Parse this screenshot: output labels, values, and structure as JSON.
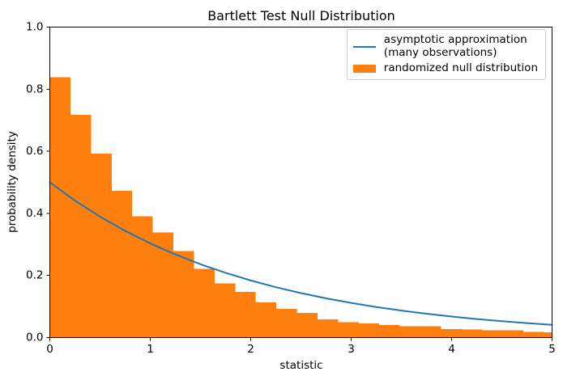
{
  "colors": {
    "line": "#1f77b4",
    "bars": "#ff7f0e",
    "axes": "#000000",
    "background": "#ffffff",
    "legend_border": "#cccccc"
  },
  "legend": {
    "position": "upper right",
    "items": [
      {
        "label_lines": [
          "asymptotic approximation",
          "(many observations)"
        ],
        "handle": "line"
      },
      {
        "label_lines": [
          "randomized null distribution"
        ],
        "handle": "patch"
      }
    ]
  },
  "chart_data": {
    "type": "histogram",
    "title": "Bartlett Test Null Distribution",
    "xlabel": "statistic",
    "ylabel": "probability density",
    "xlim": [
      0,
      5
    ],
    "ylim": [
      0,
      1
    ],
    "xticks": [
      0,
      1,
      2,
      3,
      4,
      5
    ],
    "xtick_labels": [
      "0",
      "1",
      "2",
      "3",
      "4",
      "5"
    ],
    "yticks": [
      0,
      0.2,
      0.4,
      0.6,
      0.8,
      1.0
    ],
    "ytick_labels": [
      "0.0",
      "0.2",
      "0.4",
      "0.6",
      "0.8",
      "1.0"
    ],
    "grid": false,
    "legend_position": "upper right",
    "series": [
      {
        "name": "asymptotic approximation (many observations)",
        "type": "line",
        "color": "#1f77b4",
        "x": [
          0,
          0.25,
          0.5,
          0.75,
          1.0,
          1.25,
          1.5,
          1.75,
          2.0,
          2.25,
          2.5,
          2.75,
          3.0,
          3.25,
          3.5,
          3.75,
          4.0,
          4.25,
          4.5,
          4.75,
          5.0
        ],
        "y": [
          0.5,
          0.4412,
          0.3894,
          0.3436,
          0.3033,
          0.2676,
          0.2362,
          0.2084,
          0.1839,
          0.1623,
          0.1433,
          0.1264,
          0.1116,
          0.0984,
          0.0869,
          0.0767,
          0.0677,
          0.0597,
          0.0527,
          0.0465,
          0.041
        ]
      },
      {
        "name": "randomized null distribution",
        "type": "histogram-bars",
        "color": "#ff7f0e",
        "bin_start": 0,
        "bin_width": 0.205,
        "densities": [
          0.839,
          0.717,
          0.592,
          0.473,
          0.39,
          0.338,
          0.279,
          0.221,
          0.175,
          0.147,
          0.113,
          0.092,
          0.079,
          0.058,
          0.05,
          0.046,
          0.041,
          0.036,
          0.036,
          0.027,
          0.026,
          0.024,
          0.023,
          0.018,
          0.017
        ]
      }
    ]
  }
}
